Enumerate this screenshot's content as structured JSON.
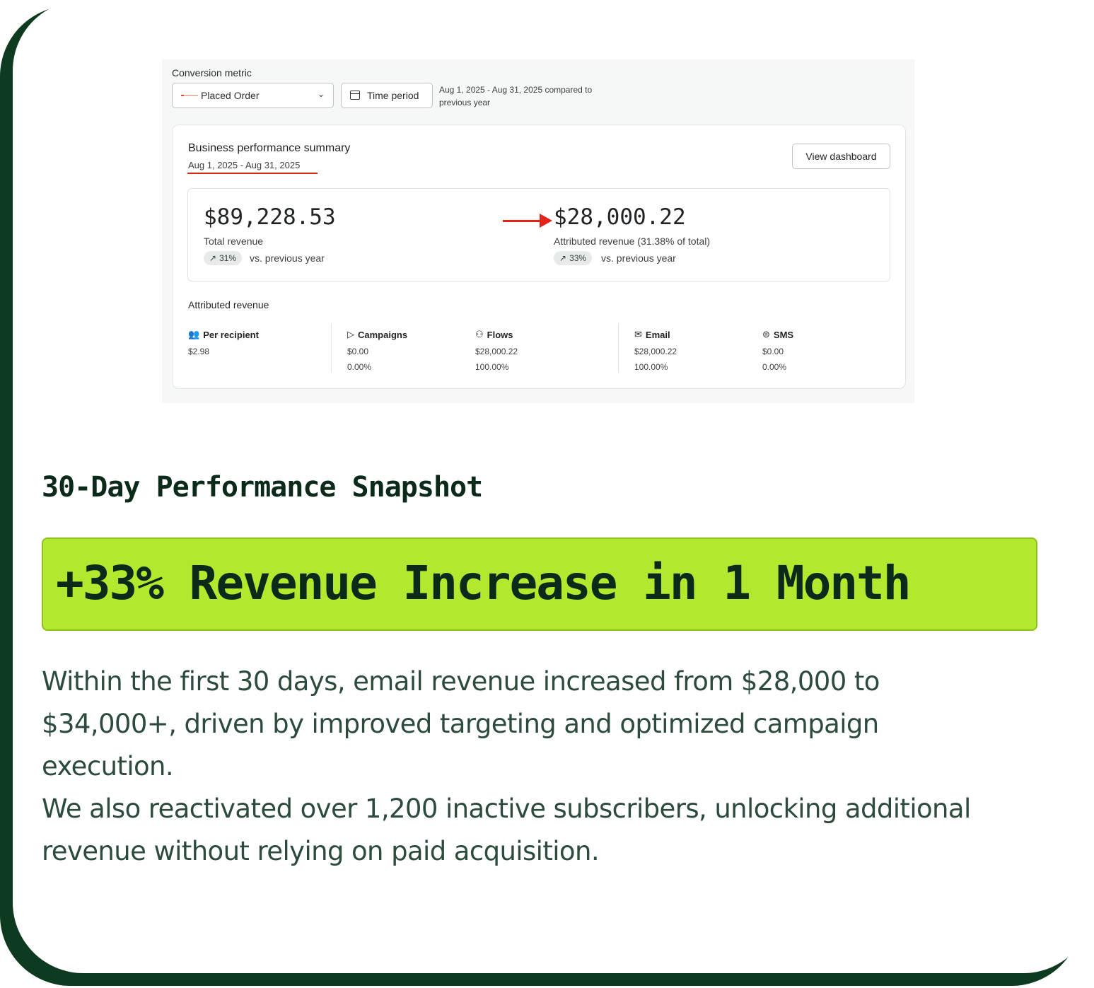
{
  "colors": {
    "accent_green": "#b2e82e",
    "dark_green": "#0e3b1f",
    "highlight_red": "#e2231a",
    "body_text": "#2c4b3c"
  },
  "screenshot": {
    "conversion_metric_label": "Conversion metric",
    "metric_select": {
      "value": "Placed Order",
      "icon": "chevron-down-icon"
    },
    "time_period_button": {
      "label": "Time period",
      "icon": "calendar-icon"
    },
    "comparison_text_line1": "Aug 1, 2025 - Aug 31, 2025 compared to",
    "comparison_text_line2": "previous year",
    "summary": {
      "title": "Business performance summary",
      "date_range": "Aug 1, 2025 - Aug 31, 2025",
      "view_dashboard_label": "View dashboard",
      "total": {
        "value": "$89,228.53",
        "label": "Total revenue",
        "badge": "31%",
        "vs": "vs. previous year"
      },
      "attributed": {
        "value": "$28,000.22",
        "label": "Attributed revenue (31.38% of total)",
        "badge": "33%",
        "vs": "vs. previous year"
      },
      "attributed_section_title": "Attributed revenue",
      "channels": [
        {
          "name": "Per recipient",
          "icon": "people-icon",
          "value": "$2.98",
          "pct": ""
        },
        {
          "name": "Campaigns",
          "icon": "send-icon",
          "value": "$0.00",
          "pct": "0.00%"
        },
        {
          "name": "Flows",
          "icon": "flows-icon",
          "value": "$28,000.22",
          "pct": "100.00%"
        },
        {
          "name": "Email",
          "icon": "mail-icon",
          "value": "$28,000.22",
          "pct": "100.00%"
        },
        {
          "name": "SMS",
          "icon": "chat-icon",
          "value": "$0.00",
          "pct": "0.00%"
        }
      ]
    }
  },
  "snapshot_title": "30-Day Performance Snapshot",
  "banner": "+33% Revenue Increase in 1 Month",
  "paragraph1_line1": "Within the first 30 days, email revenue increased from $28,000 to",
  "paragraph1_line2": "$34,000+, driven by improved targeting and optimized campaign",
  "paragraph1_line3": "execution.",
  "paragraph2_line1": "We also reactivated over 1,200 inactive subscribers, unlocking additional",
  "paragraph2_line2": "revenue without relying on paid acquisition."
}
